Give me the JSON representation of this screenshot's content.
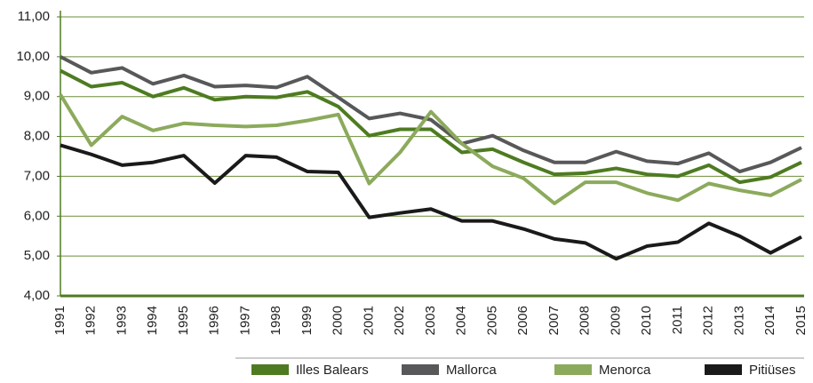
{
  "chart_data": {
    "type": "line",
    "categories": [
      "1991",
      "1992",
      "1993",
      "1994",
      "1995",
      "1996",
      "1997",
      "1998",
      "1999",
      "2000",
      "2001",
      "2002",
      "2003",
      "2004",
      "2005",
      "2006",
      "2007",
      "2008",
      "2009",
      "2010",
      "2011",
      "2012",
      "2013",
      "2014",
      "2015"
    ],
    "series": [
      {
        "name": "Illes Balears",
        "color": "#4e7b21",
        "values": [
          9.65,
          9.25,
          9.35,
          9.0,
          9.22,
          8.92,
          9.0,
          8.98,
          9.12,
          8.75,
          8.02,
          8.18,
          8.18,
          7.6,
          7.68,
          7.35,
          7.05,
          7.08,
          7.2,
          7.05,
          7.0,
          7.28,
          6.85,
          6.98,
          7.35
        ]
      },
      {
        "name": "Mallorca",
        "color": "#58585a",
        "values": [
          10.0,
          9.6,
          9.72,
          9.32,
          9.53,
          9.25,
          9.28,
          9.23,
          9.5,
          8.98,
          8.45,
          8.58,
          8.42,
          7.82,
          8.02,
          7.65,
          7.35,
          7.35,
          7.62,
          7.38,
          7.32,
          7.58,
          7.12,
          7.35,
          7.72
        ]
      },
      {
        "name": "Menorca",
        "color": "#8caa5c",
        "values": [
          9.05,
          7.78,
          8.5,
          8.15,
          8.33,
          8.28,
          8.25,
          8.28,
          8.4,
          8.55,
          6.82,
          7.6,
          8.62,
          7.82,
          7.25,
          6.95,
          6.32,
          6.85,
          6.85,
          6.58,
          6.4,
          6.82,
          6.65,
          6.52,
          6.92
        ]
      },
      {
        "name": "Pitiüses",
        "color": "#1a1a1a",
        "values": [
          7.78,
          7.55,
          7.28,
          7.35,
          7.52,
          6.83,
          7.52,
          7.48,
          7.12,
          7.1,
          5.97,
          6.08,
          6.18,
          5.88,
          5.88,
          5.68,
          5.43,
          5.33,
          4.93,
          5.25,
          5.35,
          5.82,
          5.5,
          5.08,
          5.48
        ]
      }
    ],
    "ylim": [
      4,
      11
    ],
    "yticks": [
      {
        "value": 4,
        "label": "4,00"
      },
      {
        "value": 5,
        "label": "5,00"
      },
      {
        "value": 6,
        "label": "6,00"
      },
      {
        "value": 7,
        "label": "7,00"
      },
      {
        "value": 8,
        "label": "8,00"
      },
      {
        "value": 9,
        "label": "9,00"
      },
      {
        "value": 10,
        "label": "10,00"
      },
      {
        "value": 11,
        "label": "11,00"
      }
    ],
    "grid": true,
    "legend": "bottom"
  }
}
